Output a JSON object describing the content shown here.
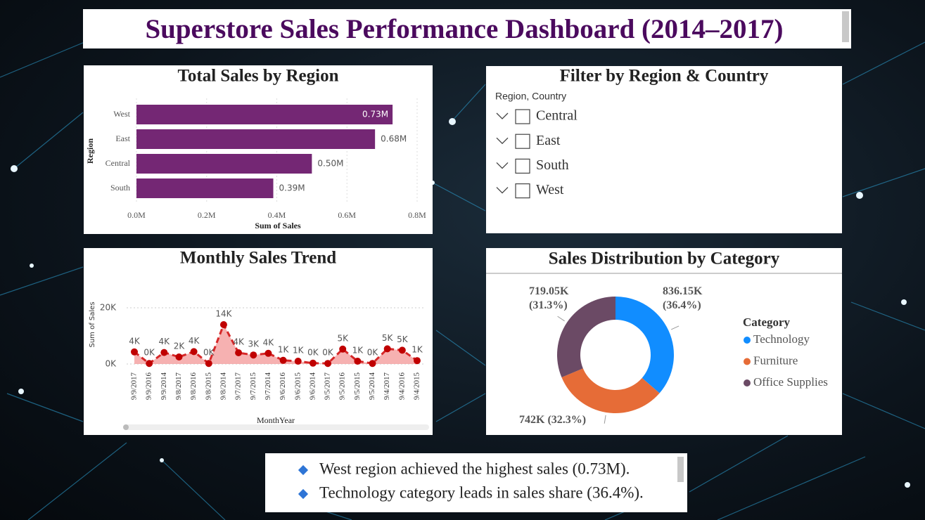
{
  "title": "Superstore Sales Performance Dashboard (2014–2017)",
  "chart_data": [
    {
      "type": "bar",
      "orientation": "horizontal",
      "title": "Total Sales by Region",
      "x_label": "Sum of Sales",
      "y_label": "Region",
      "categories": [
        "West",
        "East",
        "Central",
        "South"
      ],
      "values": [
        0.73,
        0.68,
        0.5,
        0.39
      ],
      "value_labels": [
        "0.73M",
        "0.68M",
        "0.50M",
        "0.39M"
      ],
      "color": "#742774",
      "xlim": [
        0,
        0.8
      ],
      "xticks": [
        {
          "value": 0,
          "label": "0.0M"
        },
        {
          "value": 0.2,
          "label": "0.2M"
        },
        {
          "value": 0.4,
          "label": "0.4M"
        },
        {
          "value": 0.6,
          "label": "0.6M"
        },
        {
          "value": 0.8,
          "label": "0.8M"
        }
      ],
      "grid": true
    },
    {
      "type": "line",
      "title": "Monthly Sales Trend",
      "x_label": "MonthYear",
      "y_label": "Sum of Sales",
      "categories": [
        "9/9/2017",
        "9/9/2016",
        "9/9/2014",
        "9/8/2017",
        "9/8/2016",
        "9/8/2015",
        "9/8/2014",
        "9/7/2017",
        "9/7/2015",
        "9/7/2014",
        "9/6/2016",
        "9/6/2015",
        "9/6/2014",
        "9/5/2017",
        "9/5/2016",
        "9/5/2015",
        "9/5/2014",
        "9/4/2017",
        "9/4/2016",
        "9/4/2015"
      ],
      "values": [
        4300,
        200,
        4100,
        2500,
        4400,
        200,
        14000,
        4000,
        3200,
        3800,
        1300,
        1000,
        300,
        200,
        5300,
        1000,
        200,
        5400,
        4900,
        1200
      ],
      "value_labels": [
        "4K",
        "0K",
        "4K",
        "2K",
        "4K",
        "0K",
        "14K",
        "4K",
        "3K",
        "4K",
        "1K",
        "1K",
        "0K",
        "0K",
        "5K",
        "1K",
        "0K",
        "5K",
        "5K",
        "1K"
      ],
      "color": "#d62728",
      "area_color": "#f4a3a3",
      "ylim": [
        0,
        22000
      ],
      "yticks": [
        {
          "value": 0,
          "label": "0K"
        },
        {
          "value": 20000,
          "label": "20K"
        }
      ],
      "grid": true
    },
    {
      "type": "donut",
      "title": "Sales Distribution by Category",
      "legend_title": "Category",
      "legend": "right",
      "categories": [
        "Technology",
        "Furniture",
        "Office Supplies"
      ],
      "values": [
        836150,
        742000,
        719050
      ],
      "value_labels": [
        "836.15K (36.4%)",
        "742K (32.3%)",
        "719.05K (31.3%)"
      ],
      "colors": [
        "#118dff",
        "#e66c37",
        "#6b4a65"
      ]
    }
  ],
  "filter": {
    "title": "Filter by Region & Country",
    "header": "Region, Country",
    "items": [
      "Central",
      "East",
      "South",
      "West"
    ]
  },
  "insights": [
    "West region achieved the highest sales (0.73M).",
    "Technology category leads in sales share (36.4%)."
  ]
}
